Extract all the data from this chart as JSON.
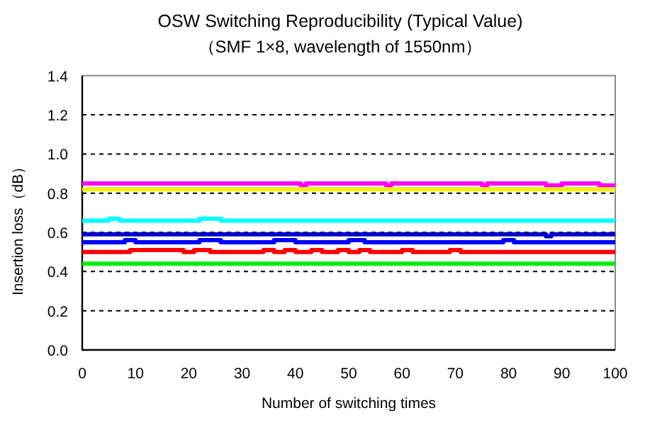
{
  "chart_data": {
    "type": "step",
    "title": "OSW Switching Reproducibility (Typical Value)",
    "subtitle": "（SMF 1×8, wavelength of 1550nm）",
    "xlabel": "Number of switching times",
    "ylabel": "Insertion loss（dB）",
    "xlim": [
      0,
      100
    ],
    "xticks": [
      0,
      10,
      20,
      30,
      40,
      50,
      60,
      70,
      80,
      90,
      100
    ],
    "ylim": [
      0,
      1.4
    ],
    "yticks": [
      {
        "value": 0,
        "label": "0.0"
      },
      {
        "value": 0.2,
        "label": "0.2"
      },
      {
        "value": 0.4,
        "label": "0.4"
      },
      {
        "value": 0.6,
        "label": "0.6"
      },
      {
        "value": 0.8,
        "label": "0.8"
      },
      {
        "value": 1.0,
        "label": "1.0"
      },
      {
        "value": 1.2,
        "label": "1.2"
      },
      {
        "value": 1.4,
        "label": "1.4"
      }
    ],
    "grid": "y",
    "series": [
      {
        "color": "#ff00ff",
        "x": [
          0,
          41,
          42,
          57,
          58,
          75,
          76,
          87,
          90,
          97,
          100
        ],
        "values": [
          0.85,
          0.84,
          0.85,
          0.84,
          0.85,
          0.84,
          0.85,
          0.84,
          0.85,
          0.84,
          0.84
        ]
      },
      {
        "color": "#f0f000",
        "x": [
          0,
          100
        ],
        "values": [
          0.82,
          0.82
        ]
      },
      {
        "color": "#00ffff",
        "x": [
          0,
          5,
          7,
          22,
          26,
          100
        ],
        "values": [
          0.66,
          0.67,
          0.66,
          0.67,
          0.66,
          0.66
        ]
      },
      {
        "color": "#0000cc",
        "x": [
          0,
          87,
          88,
          100
        ],
        "values": [
          0.59,
          0.58,
          0.59,
          0.59
        ]
      },
      {
        "color": "#0000ff",
        "x": [
          0,
          8,
          10,
          22,
          26,
          36,
          40,
          50,
          53,
          79,
          81,
          100
        ],
        "values": [
          0.55,
          0.56,
          0.55,
          0.56,
          0.55,
          0.56,
          0.55,
          0.56,
          0.55,
          0.56,
          0.55,
          0.55
        ]
      },
      {
        "color": "#ff0000",
        "x": [
          0,
          9,
          19,
          21,
          24,
          34,
          36,
          38,
          40,
          43,
          45,
          48,
          50,
          52,
          54,
          60,
          62,
          69,
          71,
          100
        ],
        "values": [
          0.5,
          0.51,
          0.5,
          0.51,
          0.5,
          0.51,
          0.5,
          0.51,
          0.5,
          0.51,
          0.5,
          0.51,
          0.5,
          0.51,
          0.5,
          0.51,
          0.5,
          0.51,
          0.5,
          0.5
        ]
      },
      {
        "color": "#00ee00",
        "x": [
          0,
          100
        ],
        "values": [
          0.44,
          0.44
        ]
      }
    ]
  }
}
